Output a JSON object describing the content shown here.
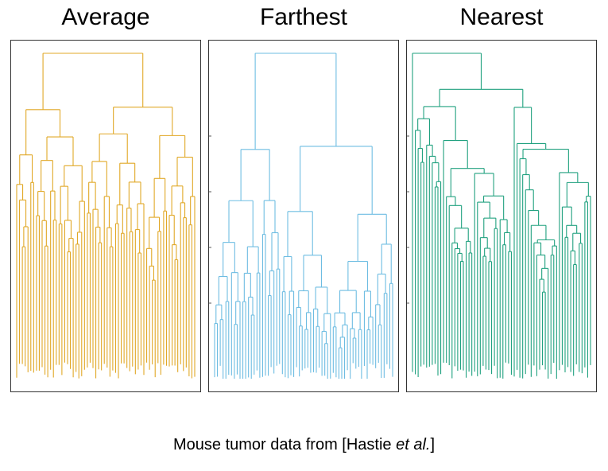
{
  "panels": [
    {
      "title": "Average",
      "color": "#E1A827"
    },
    {
      "title": "Farthest",
      "color": "#6EBDE2"
    },
    {
      "title": "Nearest",
      "color": "#20A17F"
    }
  ],
  "caption": {
    "prefix": "Mouse tumor data from [Hastie ",
    "italic": "et al.",
    "suffix": "]"
  }
}
